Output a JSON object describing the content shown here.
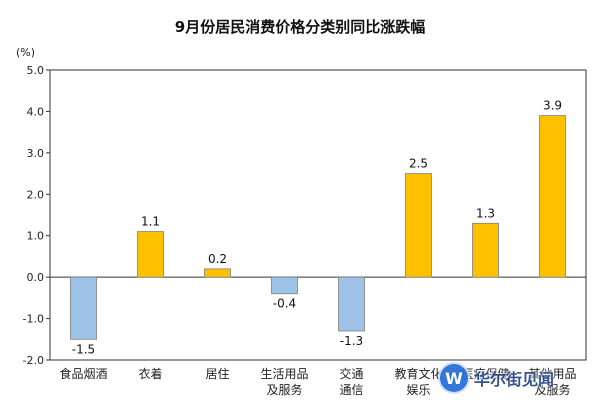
{
  "chart_data": {
    "type": "bar",
    "title": "9月份居民消费价格分类别同比涨跌幅",
    "unit_label": "(%)",
    "categories": [
      [
        "食品烟酒"
      ],
      [
        "衣着"
      ],
      [
        "居住"
      ],
      [
        "生活用品",
        "及服务"
      ],
      [
        "交通",
        "通信"
      ],
      [
        "教育文化",
        "娱乐"
      ],
      [
        "医疗保健"
      ],
      [
        "其他用品",
        "及服务"
      ]
    ],
    "values": [
      -1.5,
      1.1,
      0.2,
      -0.4,
      -1.3,
      2.5,
      1.3,
      3.9
    ],
    "value_labels": [
      "-1.5",
      "1.1",
      "0.2",
      "-0.4",
      "-1.3",
      "2.5",
      "1.3",
      "3.9"
    ],
    "ylim": [
      -2.0,
      5.0
    ],
    "yticks": [
      "5.0",
      "4.0",
      "3.0",
      "2.0",
      "1.0",
      "0.0",
      "-1.0",
      "-2.0"
    ],
    "ytick_values": [
      5,
      4,
      3,
      2,
      1,
      0,
      -1,
      -2
    ],
    "grid": false,
    "colors": {
      "positive": "#FFC000",
      "negative": "#9DC3E6",
      "border": "#7f7f7f"
    }
  },
  "watermark": {
    "text": "华尔街见闻",
    "logo_letter": "W"
  }
}
